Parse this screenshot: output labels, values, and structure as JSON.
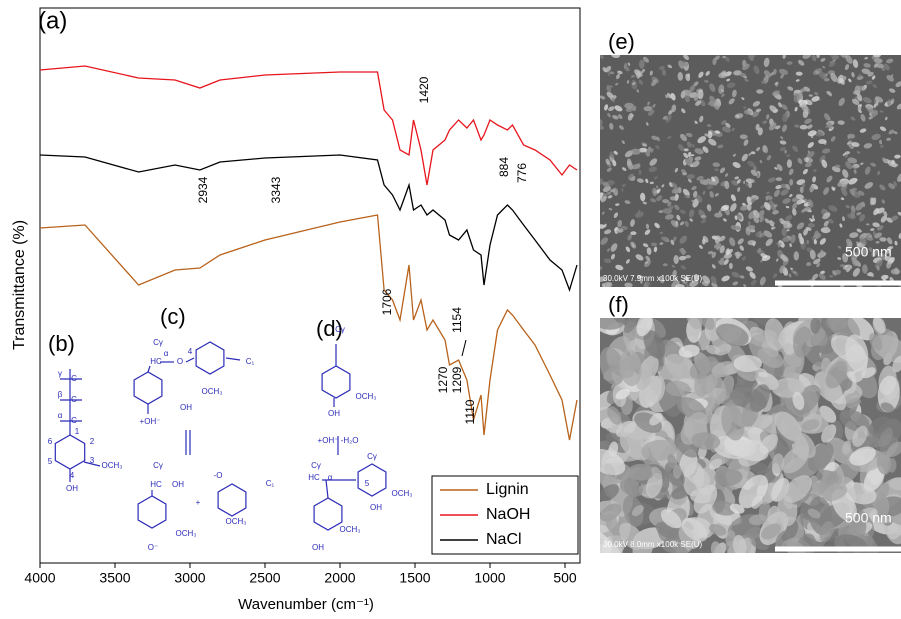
{
  "chart_data": {
    "type": "line",
    "panel_label": "(a)",
    "x_label": "Wavenumber (cm⁻¹)",
    "y_label": "Transmittance (%)",
    "xlim": [
      4000,
      400
    ],
    "xticks": [
      4000,
      3500,
      3000,
      2500,
      2000,
      1500,
      1000,
      500
    ],
    "ylim": [
      0,
      111
    ],
    "legend": "bottom right",
    "x": [
      4000,
      3700,
      3343,
      3100,
      2934,
      2800,
      2500,
      2000,
      1750,
      1706,
      1650,
      1600,
      1540,
      1510,
      1460,
      1420,
      1380,
      1300,
      1270,
      1209,
      1154,
      1110,
      1060,
      1040,
      1000,
      950,
      884,
      850,
      776,
      700,
      600,
      520,
      470,
      420
    ],
    "series": [
      {
        "name": "Lignin",
        "color": "#b8621b",
        "values": [
          67,
          67.6,
          55.6,
          58.6,
          59,
          61.6,
          64.6,
          68.2,
          69.6,
          54.6,
          52.6,
          48.6,
          59.6,
          48.6,
          52.6,
          46.6,
          48.6,
          44.6,
          39.6,
          40.6,
          36.6,
          28.6,
          33.6,
          25.6,
          36.6,
          46.6,
          50.6,
          49.6,
          46.6,
          43.6,
          37.6,
          32.6,
          24.6,
          32.6
        ]
      },
      {
        "name": "NaOH",
        "color": "#e8141c",
        "values": [
          98.6,
          99.4,
          97,
          96.6,
          95,
          96.6,
          97.6,
          98.2,
          98.2,
          90.6,
          88.6,
          82.6,
          81.6,
          88.6,
          82.6,
          75.6,
          82.6,
          84.6,
          86.6,
          88.6,
          87,
          88.6,
          84.6,
          85.6,
          88.6,
          87.6,
          86.6,
          87.6,
          83.6,
          82.6,
          80.6,
          77.6,
          79.6,
          78.6
        ]
      },
      {
        "name": "NaCl",
        "color": "#000000",
        "values": [
          81.6,
          81.2,
          78.2,
          79.6,
          78.6,
          80.2,
          81,
          81.6,
          80.6,
          75.6,
          73.6,
          70.6,
          75.6,
          70.6,
          71.6,
          69.6,
          70.6,
          68.6,
          65.6,
          64.6,
          66.6,
          62.6,
          61.6,
          55.6,
          63.6,
          69.6,
          71.6,
          70.6,
          67.6,
          64.6,
          60.6,
          58.6,
          54.6,
          59.6
        ]
      }
    ],
    "annotations": [
      "3343",
      "2934",
      "1420",
      "884",
      "776",
      "1706",
      "1154",
      "1270",
      "1209",
      "1110"
    ]
  },
  "structures": {
    "b": {
      "label": "(b)",
      "texts": [
        "γ",
        "C",
        "β",
        "C",
        "α",
        "C",
        "1",
        "2",
        "3",
        "4",
        "5",
        "6",
        "OCH₃",
        "OH"
      ]
    },
    "c": {
      "label": "(c)",
      "texts": [
        "Cγ",
        "α",
        "HC",
        "O",
        "4",
        "C₁",
        "OCH₃",
        "OH",
        "+OH⁻",
        "Cγ",
        "HC",
        "OH",
        "OCH₃",
        "O⁻",
        "+",
        "-O",
        "C₁",
        "OCH₃"
      ]
    },
    "d": {
      "label": "(d)",
      "texts": [
        "Cγ",
        "OCH₃",
        "OH",
        "+OH⁻  -H₂O",
        "Cγ",
        "HC",
        "α",
        "5",
        "Cγ",
        "OCH₃",
        "OH",
        "OCH₃",
        "OH"
      ]
    }
  },
  "sem_panels": [
    {
      "label": "(e)",
      "scale": "500 nm",
      "caption": "30.0kV 7.9mm x100k SE(U)"
    },
    {
      "label": "(f)",
      "scale": "500 nm",
      "caption": "30.0kV 8.0mm x100k SE(U)"
    }
  ]
}
